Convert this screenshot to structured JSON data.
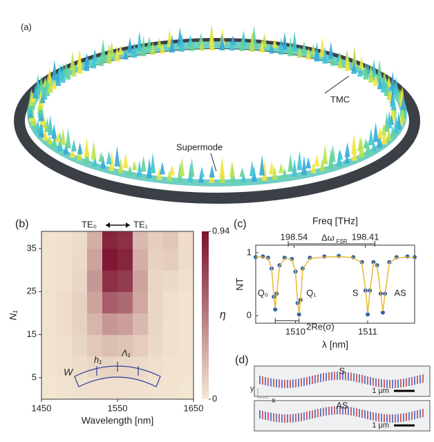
{
  "panel_a": {
    "label": "(a)",
    "annotations": [
      "TMC",
      "Supermode"
    ]
  },
  "chart_data": [
    {
      "type": "heatmap",
      "label": "(b)",
      "header_left": "TE₀",
      "header_right": "TE₁",
      "xlabel": "Wavelength [nm]",
      "ylabel": "N₁",
      "colorbar_label": "η",
      "xlim": [
        1450,
        1650
      ],
      "xticks": [
        1450,
        1550,
        1650
      ],
      "ylim": [
        0,
        39
      ],
      "yticks": [
        5,
        15,
        25,
        35
      ],
      "clim": [
        0,
        0.94
      ],
      "cticks": [
        0,
        0.94
      ],
      "colors": [
        "#f4e8d3",
        "#7b0f2e"
      ],
      "x": [
        1460,
        1480,
        1500,
        1520,
        1540,
        1560,
        1580,
        1600,
        1620,
        1640
      ],
      "y": [
        2.5,
        7.5,
        12.5,
        17.5,
        22.5,
        27.5,
        32.5,
        37.5
      ],
      "z": [
        [
          0.01,
          0.02,
          0.03,
          0.04,
          0.04,
          0.04,
          0.03,
          0.02,
          0.02,
          0.01
        ],
        [
          0.02,
          0.03,
          0.05,
          0.08,
          0.09,
          0.08,
          0.06,
          0.04,
          0.02,
          0.02
        ],
        [
          0.02,
          0.04,
          0.08,
          0.14,
          0.18,
          0.16,
          0.12,
          0.06,
          0.03,
          0.02
        ],
        [
          0.02,
          0.05,
          0.1,
          0.22,
          0.35,
          0.32,
          0.2,
          0.08,
          0.03,
          0.02
        ],
        [
          0.02,
          0.05,
          0.1,
          0.3,
          0.6,
          0.55,
          0.28,
          0.08,
          0.04,
          0.02
        ],
        [
          0.02,
          0.04,
          0.08,
          0.35,
          0.8,
          0.75,
          0.3,
          0.08,
          0.06,
          0.03
        ],
        [
          0.02,
          0.03,
          0.06,
          0.3,
          0.9,
          0.85,
          0.25,
          0.1,
          0.12,
          0.05
        ],
        [
          0.02,
          0.03,
          0.05,
          0.25,
          0.85,
          0.8,
          0.2,
          0.12,
          0.15,
          0.05
        ]
      ],
      "inset_labels": [
        "W",
        "h₁",
        "Λ₁"
      ]
    },
    {
      "type": "line",
      "label": "(c)",
      "xlabel": "λ [nm]",
      "ylabel": "NT",
      "x2label": "Freq [THz]",
      "xlim": [
        1509.45,
        1511.65
      ],
      "xticks": [
        1510,
        1511
      ],
      "x2lim": [
        198.61,
        198.32
      ],
      "x2ticks": [
        198.54,
        198.41
      ],
      "ylim": [
        -0.12,
        1.12
      ],
      "yticks": [
        0,
        1
      ],
      "x": [
        1509.45,
        1509.55,
        1509.62,
        1509.67,
        1509.7,
        1509.72,
        1509.74,
        1509.78,
        1509.85,
        1509.95,
        1510.0,
        1510.03,
        1510.05,
        1510.07,
        1510.1,
        1510.2,
        1510.4,
        1510.6,
        1510.8,
        1510.92,
        1510.97,
        1511.0,
        1511.03,
        1511.08,
        1511.13,
        1511.18,
        1511.21,
        1511.24,
        1511.3,
        1511.4,
        1511.55,
        1511.65
      ],
      "series": [
        {
          "color": "#2f5fa8",
          "values": [
            0.93,
            0.94,
            0.92,
            0.75,
            0.3,
            0.1,
            0.35,
            0.8,
            0.92,
            0.9,
            0.7,
            0.2,
            0.02,
            0.25,
            0.75,
            0.92,
            0.94,
            0.95,
            0.93,
            0.85,
            0.4,
            0.02,
            0.4,
            0.85,
            0.8,
            0.35,
            0.05,
            0.35,
            0.85,
            0.93,
            0.94,
            0.93
          ]
        },
        {
          "color": "#e8b830",
          "values": [
            0.93,
            0.93,
            0.91,
            0.76,
            0.32,
            0.12,
            0.33,
            0.79,
            0.91,
            0.89,
            0.71,
            0.22,
            0.04,
            0.24,
            0.74,
            0.91,
            0.93,
            0.94,
            0.92,
            0.84,
            0.42,
            0.04,
            0.38,
            0.84,
            0.79,
            0.36,
            0.07,
            0.34,
            0.84,
            0.92,
            0.93,
            0.92
          ]
        }
      ],
      "annotations": [
        "Q₀",
        "Q₁",
        "S",
        "AS",
        "2Re(σ)"
      ],
      "fsr_label": "Δω",
      "fsr_sub": "FSR"
    }
  ],
  "panel_d": {
    "label": "(d)",
    "images": [
      "S",
      "AS"
    ],
    "scale": "1 μm",
    "axes": [
      "y",
      "x"
    ]
  }
}
